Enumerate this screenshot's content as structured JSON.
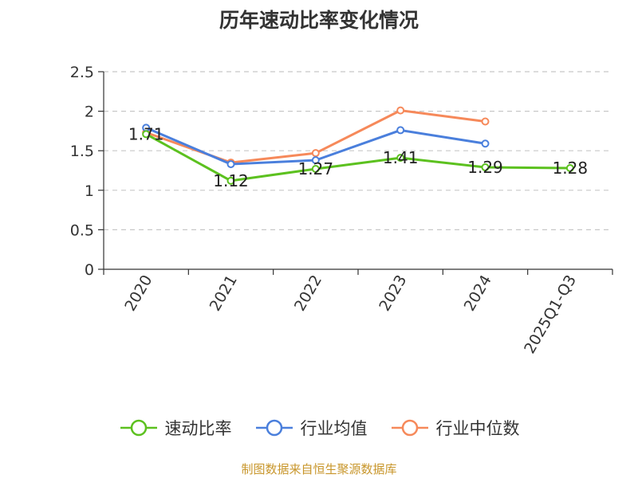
{
  "chart_data": {
    "type": "line",
    "title": "历年速动比率变化情况",
    "categories": [
      "2020",
      "2021",
      "2022",
      "2023",
      "2024",
      "2025Q1-Q3"
    ],
    "ylim": [
      0,
      2.5
    ],
    "yticks": [
      "0",
      "0.5",
      "1",
      "1.5",
      "2",
      "2.5"
    ],
    "grid": true,
    "legend_position": "bottom",
    "series": [
      {
        "name": "速动比率",
        "color": "#5cc11f",
        "values": [
          1.71,
          1.12,
          1.27,
          1.41,
          1.29,
          1.28
        ],
        "labels": [
          "1.71",
          "1.12",
          "1.27",
          "1.41",
          "1.29",
          "1.28"
        ]
      },
      {
        "name": "行业均值",
        "color": "#4a7fdc",
        "values": [
          1.79,
          1.33,
          1.38,
          1.76,
          1.59,
          null
        ]
      },
      {
        "name": "行业中位数",
        "color": "#f6895a",
        "values": [
          1.73,
          1.35,
          1.47,
          2.01,
          1.87,
          null
        ]
      }
    ]
  },
  "source": {
    "text": "制图数据来自恒生聚源数据库",
    "color": "#c8962b"
  }
}
